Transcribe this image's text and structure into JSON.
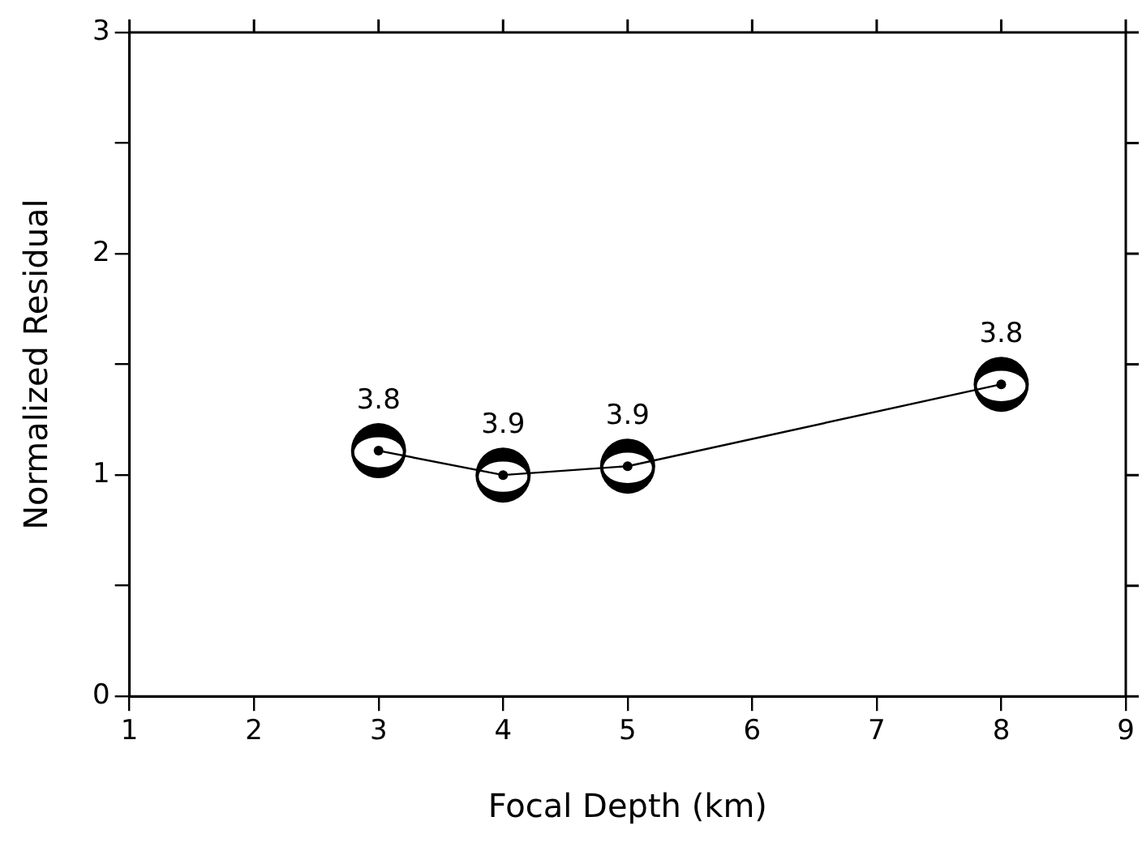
{
  "chart_data": {
    "type": "line",
    "xlabel": "Focal Depth (km)",
    "ylabel": "Normalized Residual",
    "x": [
      3,
      4,
      5,
      8
    ],
    "series": [
      {
        "color": "#000000",
        "values": [
          1.11,
          1.0,
          1.04,
          1.41
        ]
      }
    ],
    "xlim": [
      1,
      9
    ],
    "xticks": [
      1,
      2,
      3,
      4,
      5,
      6,
      7,
      8,
      9
    ],
    "ylim": [
      0,
      3
    ],
    "yticks": [
      0,
      {
        "value": 0.5,
        "label": null
      },
      1,
      {
        "value": 1.5,
        "label": null
      },
      2,
      {
        "value": 2.5,
        "label": null
      },
      3
    ],
    "marker": "circle",
    "line_style": "solid",
    "grid": false,
    "legend": false,
    "annotations": [
      {
        "text": "3.8",
        "x": 3,
        "y": 1.11
      },
      {
        "text": "3.9",
        "x": 4,
        "y": 1.0
      },
      {
        "text": "3.9",
        "x": 5,
        "y": 1.04
      },
      {
        "text": "3.8",
        "x": 8,
        "y": 1.41
      }
    ]
  }
}
